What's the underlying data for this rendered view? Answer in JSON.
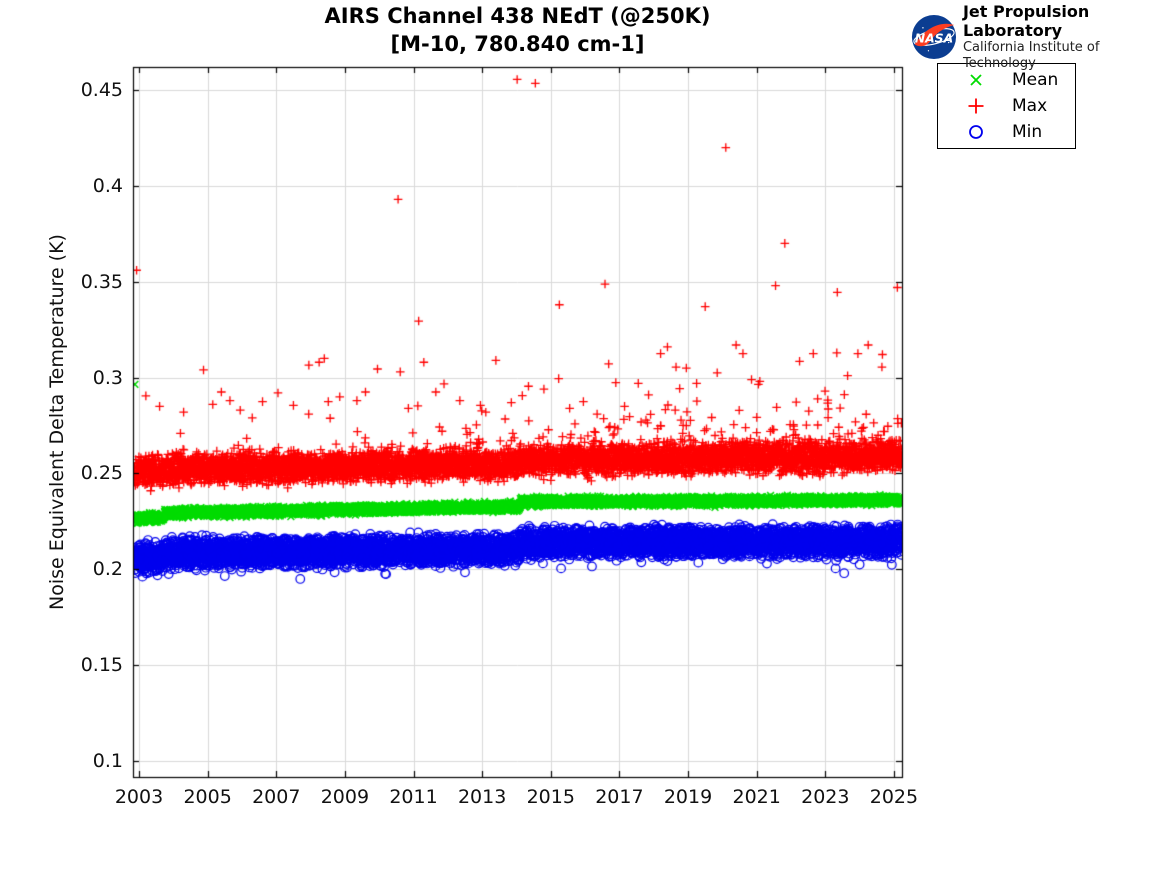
{
  "header": {
    "logo": {
      "nasa_text": "NASA",
      "org": "Jet Propulsion Laboratory",
      "suborg": "California Institute of Technology",
      "insignia_blue": "#0B3D91",
      "insignia_red": "#FC3D21"
    }
  },
  "chart_data": {
    "type": "scatter",
    "title": "AIRS Channel 438 NEdT (@250K)",
    "subtitle": "[M-10, 780.840 cm-1]",
    "xlabel": "",
    "ylabel": "Noise Equivalent Delta Temperature (K)",
    "xlim": [
      2002.825,
      2025.235
    ],
    "ylim": [
      0.0917,
      0.462
    ],
    "xticks": [
      2003,
      2005,
      2007,
      2009,
      2011,
      2013,
      2015,
      2017,
      2019,
      2021,
      2023,
      2025
    ],
    "yticks": [
      0.1,
      0.15,
      0.2,
      0.25,
      0.3,
      0.35,
      0.4,
      0.45
    ],
    "ytick_labels": [
      "0.1",
      "0.15",
      "0.2",
      "0.25",
      "0.3",
      "0.35",
      "0.4",
      "0.45"
    ],
    "grid": true,
    "grid_color": "#d9d9d9",
    "axis_color": "#000000",
    "legend": {
      "position": "outside-top-right",
      "entries": [
        {
          "label": "Mean",
          "marker": "x",
          "color": "#00DC00"
        },
        {
          "label": "Max",
          "marker": "+",
          "color": "#FF0000"
        },
        {
          "label": "Min",
          "marker": "o",
          "color": "#0000EE"
        }
      ]
    },
    "sampling": {
      "x_start": 2002.87,
      "x_end": 2025.22,
      "points_per_series": 5800,
      "seed": 42
    },
    "series": [
      {
        "name": "Max",
        "marker": "+",
        "color": "#FF0000",
        "marker_size": 4.3,
        "line_width": 1.3,
        "band_center_keyframes": [
          [
            2002.87,
            0.251
          ],
          [
            2003.72,
            0.2512
          ],
          [
            2003.74,
            0.2522
          ],
          [
            2014.08,
            0.2548
          ],
          [
            2014.12,
            0.2566
          ],
          [
            2025.22,
            0.2592
          ]
        ],
        "band_halfwidth": 0.0055,
        "gauss_jitter": 0.0022,
        "upper_tail": {
          "probability_start": 0.025,
          "probability_end": 0.1,
          "scale_start": 0.006,
          "scale_end": 0.011,
          "cap": 0.05
        },
        "outliers": [
          [
            2002.93,
            0.356
          ],
          [
            2003.2,
            0.2905
          ],
          [
            2003.6,
            0.285
          ],
          [
            2004.3,
            0.282
          ],
          [
            2004.88,
            0.304
          ],
          [
            2005.15,
            0.286
          ],
          [
            2005.4,
            0.2925
          ],
          [
            2005.65,
            0.288
          ],
          [
            2005.95,
            0.283
          ],
          [
            2006.3,
            0.279
          ],
          [
            2006.6,
            0.2875
          ],
          [
            2007.05,
            0.292
          ],
          [
            2007.5,
            0.2855
          ],
          [
            2007.95,
            0.3065
          ],
          [
            2008.25,
            0.308
          ],
          [
            2008.4,
            0.31
          ],
          [
            2008.85,
            0.29
          ],
          [
            2009.35,
            0.288
          ],
          [
            2009.6,
            0.2925
          ],
          [
            2009.95,
            0.3045
          ],
          [
            2010.55,
            0.393
          ],
          [
            2010.85,
            0.284
          ],
          [
            2011.15,
            0.3295
          ],
          [
            2011.3,
            0.308
          ],
          [
            2011.65,
            0.2925
          ],
          [
            2012.35,
            0.288
          ],
          [
            2012.95,
            0.2855
          ],
          [
            2013.4,
            0.309
          ],
          [
            2013.85,
            0.287
          ],
          [
            2014.02,
            0.4555
          ],
          [
            2014.55,
            0.4535
          ],
          [
            2014.35,
            0.2955
          ],
          [
            2014.8,
            0.294
          ],
          [
            2015.25,
            0.338
          ],
          [
            2015.55,
            0.284
          ],
          [
            2015.95,
            0.2875
          ],
          [
            2016.35,
            0.281
          ],
          [
            2016.58,
            0.3488
          ],
          [
            2017.15,
            0.285
          ],
          [
            2017.55,
            0.297
          ],
          [
            2017.85,
            0.291
          ],
          [
            2018.2,
            0.3125
          ],
          [
            2018.4,
            0.316
          ],
          [
            2018.65,
            0.3055
          ],
          [
            2018.95,
            0.305
          ],
          [
            2019.25,
            0.297
          ],
          [
            2019.5,
            0.337
          ],
          [
            2019.85,
            0.3025
          ],
          [
            2020.1,
            0.42
          ],
          [
            2020.4,
            0.317
          ],
          [
            2020.6,
            0.3125
          ],
          [
            2020.85,
            0.299
          ],
          [
            2021.05,
            0.2965
          ],
          [
            2021.55,
            0.348
          ],
          [
            2021.82,
            0.37
          ],
          [
            2022.25,
            0.3085
          ],
          [
            2022.65,
            0.3125
          ],
          [
            2023.35,
            0.3445
          ],
          [
            2023.65,
            0.301
          ],
          [
            2023.95,
            0.3125
          ],
          [
            2024.25,
            0.317
          ],
          [
            2024.65,
            0.3055
          ],
          [
            2025.1,
            0.347
          ]
        ]
      },
      {
        "name": "Min",
        "marker": "o",
        "color": "#0000EE",
        "marker_size": 4.3,
        "line_width": 1.2,
        "band_center_keyframes": [
          [
            2002.87,
            0.2062
          ],
          [
            2003.72,
            0.2068
          ],
          [
            2003.74,
            0.208
          ],
          [
            2014.08,
            0.2105
          ],
          [
            2014.12,
            0.2138
          ],
          [
            2025.22,
            0.2148
          ]
        ],
        "band_halfwidth": 0.0062,
        "gauss_jitter": 0.0016,
        "lower_tail": {
          "probability": 0.013,
          "min_depth": 0.002,
          "max_depth": 0.0065
        },
        "outliers": [
          [
            2003.1,
            0.1962
          ],
          [
            2005.5,
            0.1965
          ],
          [
            2008.7,
            0.1985
          ],
          [
            2010.2,
            0.1975
          ],
          [
            2012.5,
            0.1985
          ],
          [
            2015.3,
            0.2005
          ],
          [
            2016.2,
            0.2015
          ],
          [
            2019.3,
            0.2035
          ],
          [
            2021.3,
            0.203
          ],
          [
            2023.3,
            0.2005
          ],
          [
            2023.55,
            0.198
          ],
          [
            2024.0,
            0.2025
          ]
        ]
      },
      {
        "name": "Mean",
        "marker": "x",
        "color": "#00DC00",
        "marker_size": 3.4,
        "line_width": 1.5,
        "band_center_keyframes": [
          [
            2002.87,
            0.2263
          ],
          [
            2003.72,
            0.227
          ],
          [
            2003.74,
            0.2293
          ],
          [
            2014.08,
            0.2328
          ],
          [
            2014.12,
            0.2352
          ],
          [
            2025.22,
            0.236
          ]
        ],
        "band_halfwidth": 0.0017,
        "gauss_jitter": 0.0006,
        "outliers": [
          [
            2002.88,
            0.2965
          ]
        ]
      }
    ]
  }
}
